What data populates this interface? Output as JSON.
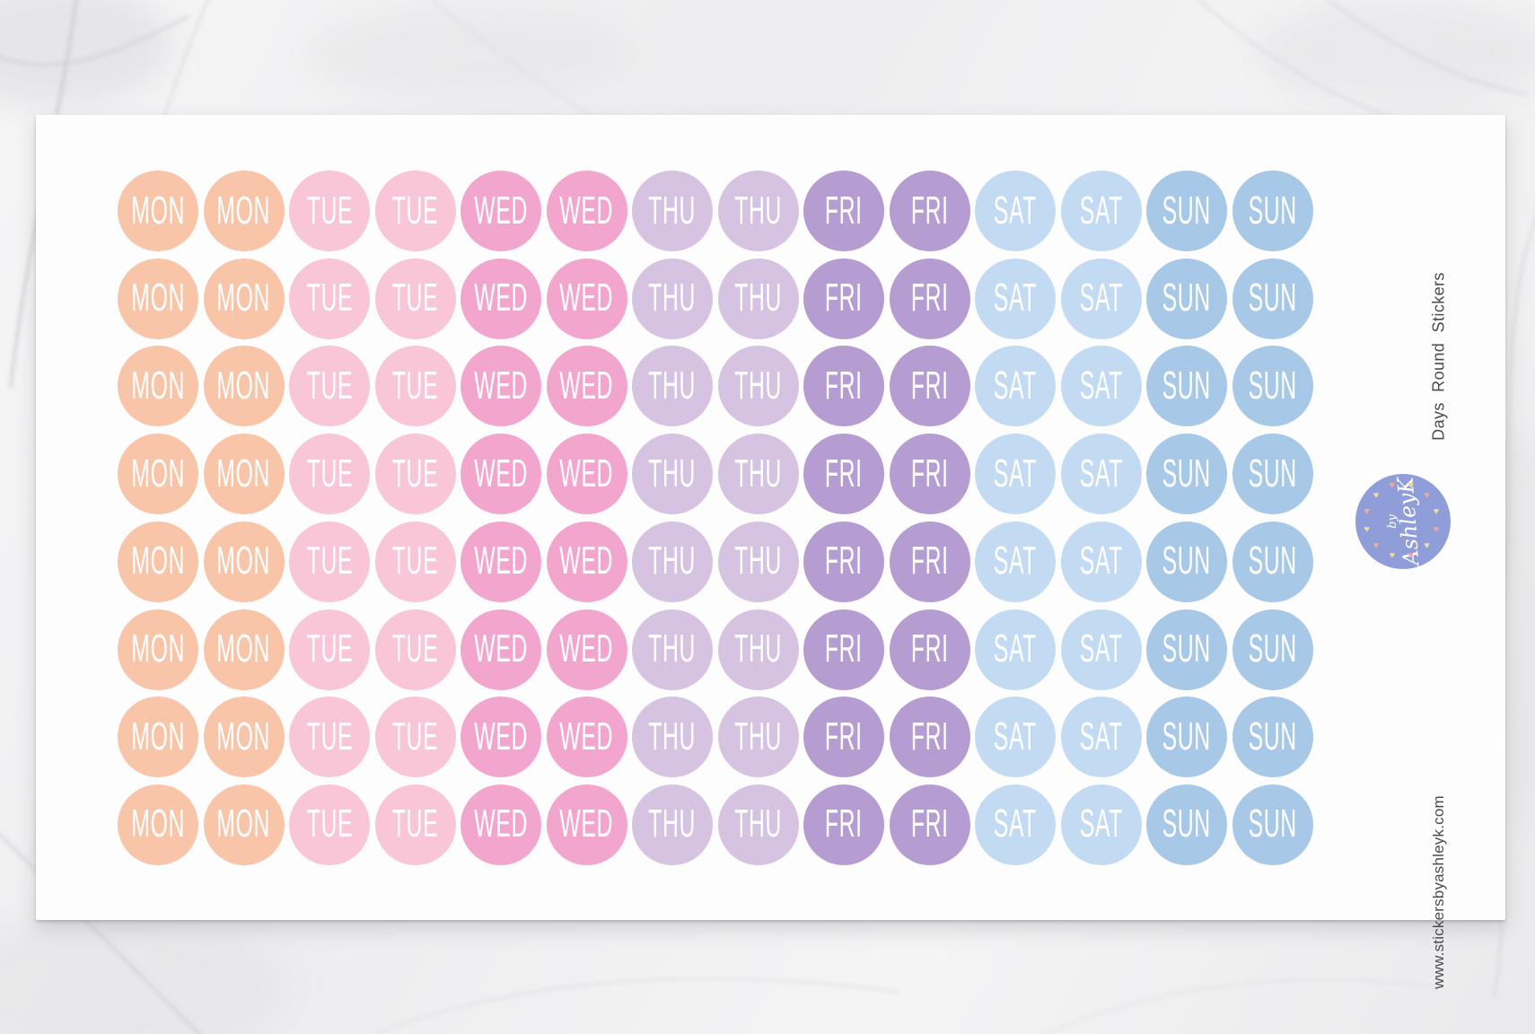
{
  "product": {
    "title": "Days Round Stickers",
    "website": "www.stickersbyashleyk.com"
  },
  "logo": {
    "line1": "by",
    "line2": "AshleyK",
    "circle_color": "#8f9dd8",
    "text_color": "#ffffff",
    "heart_colors": [
      "#f0a9a2",
      "#f2d9a0"
    ]
  },
  "sticker_sheet": {
    "rows": 8,
    "columns_per_day": 2,
    "sticker_text_color": "#ffffff",
    "days": [
      {
        "label": "MON",
        "color": "#f8c5a9"
      },
      {
        "label": "TUE",
        "color": "#f8c6d6"
      },
      {
        "label": "WED",
        "color": "#f3a6cd"
      },
      {
        "label": "THU",
        "color": "#d5c3e1"
      },
      {
        "label": "FRI",
        "color": "#b59cd1"
      },
      {
        "label": "SAT",
        "color": "#c3dbf2"
      },
      {
        "label": "SUN",
        "color": "#a8c8e8"
      }
    ]
  }
}
